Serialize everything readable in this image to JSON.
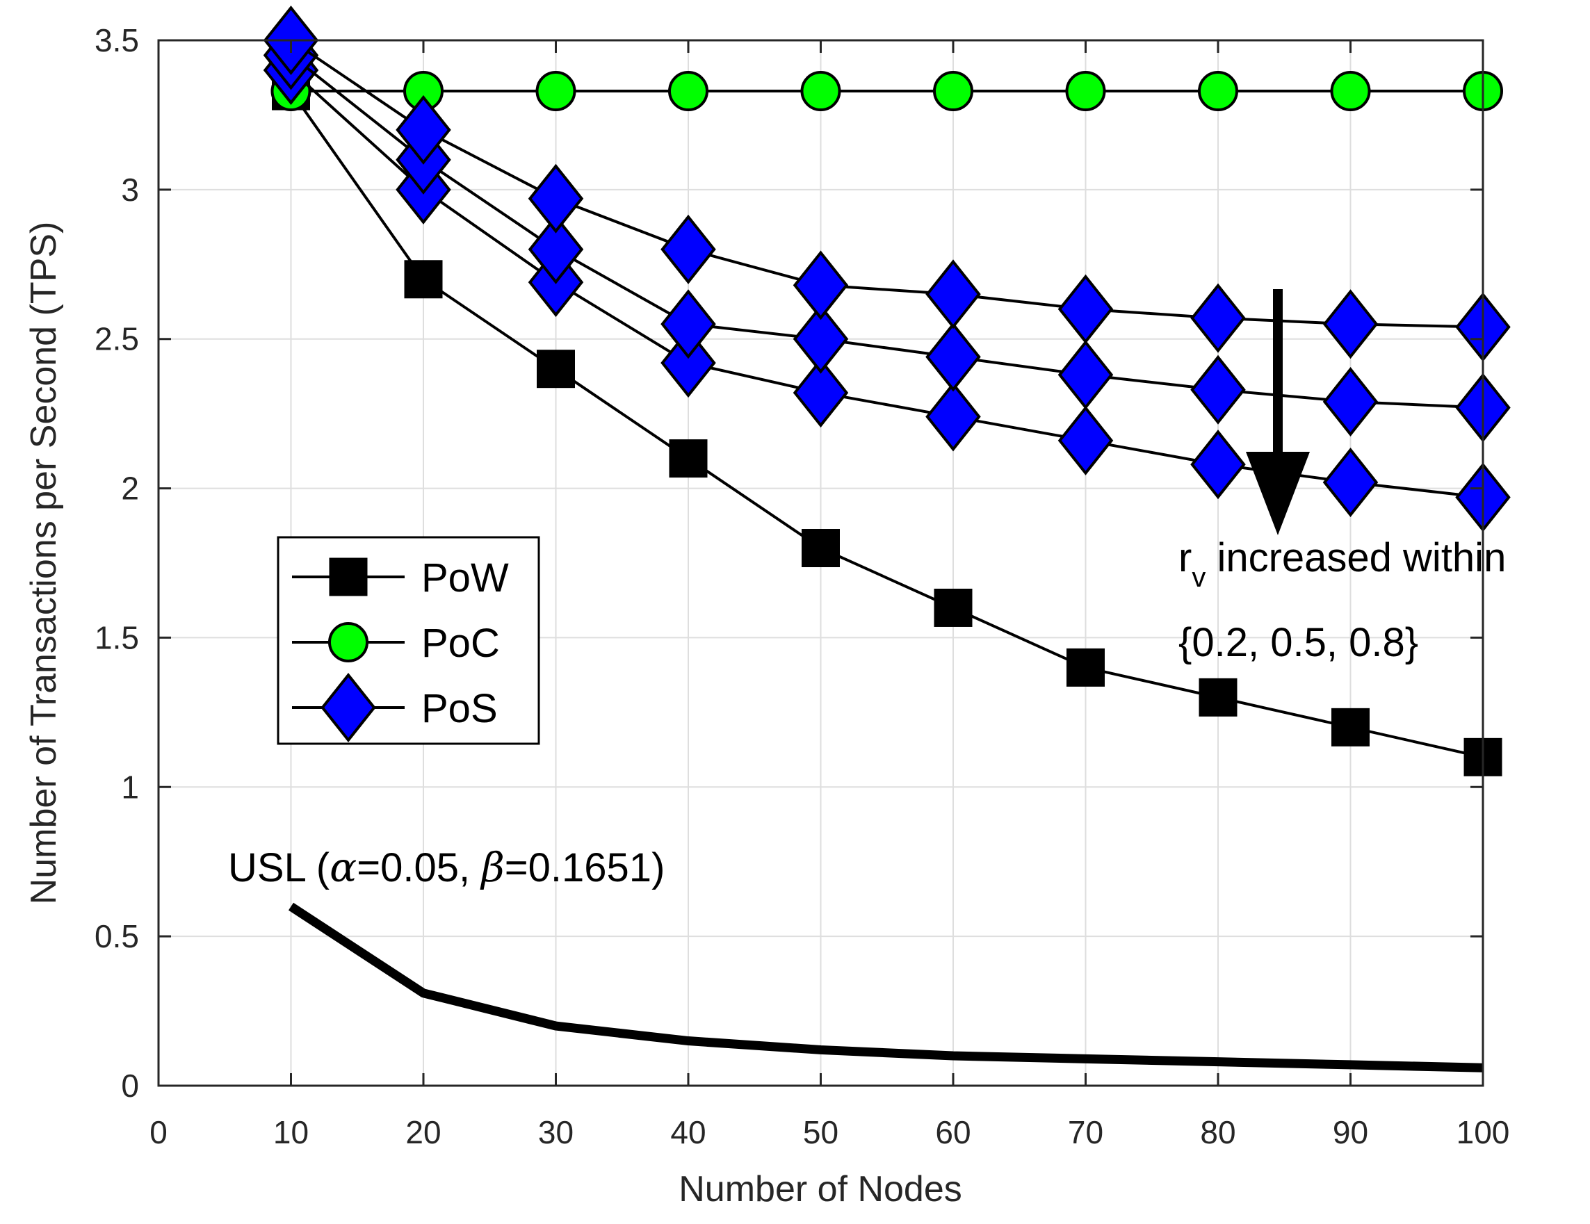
{
  "chart_data": {
    "type": "line",
    "title": "",
    "xlabel": "Number of Nodes",
    "ylabel": "Number of Transactions per Second (TPS)",
    "xlim": [
      0,
      100
    ],
    "ylim": [
      0,
      3.5
    ],
    "xticks": [
      0,
      10,
      20,
      30,
      40,
      50,
      60,
      70,
      80,
      90,
      100
    ],
    "yticks": [
      0,
      0.5,
      1,
      1.5,
      2,
      2.5,
      3,
      3.5
    ],
    "xtick_labels": [
      "0",
      "10",
      "20",
      "30",
      "40",
      "50",
      "60",
      "70",
      "80",
      "90",
      "100"
    ],
    "ytick_labels": [
      "0",
      "0.5",
      "1",
      "1.5",
      "2",
      "2.5",
      "3",
      "3.5"
    ],
    "grid": true,
    "legend_position": "middle-left",
    "legend": [
      {
        "label": "PoW",
        "marker": "square",
        "color": "#000000"
      },
      {
        "label": "PoC",
        "marker": "circle",
        "color": "#00ff00"
      },
      {
        "label": "PoS",
        "marker": "diamond",
        "color": "#0000ff"
      }
    ],
    "x": [
      10,
      20,
      30,
      40,
      50,
      60,
      70,
      80,
      90,
      100
    ],
    "series": [
      {
        "name": "PoW",
        "marker": "square",
        "color": "#000000",
        "values": [
          3.33,
          2.7,
          2.4,
          2.1,
          1.8,
          1.6,
          1.4,
          1.3,
          1.2,
          1.1
        ]
      },
      {
        "name": "PoC",
        "marker": "circle",
        "color": "#00ff00",
        "values": [
          3.33,
          3.33,
          3.33,
          3.33,
          3.33,
          3.33,
          3.33,
          3.33,
          3.33,
          3.33
        ]
      },
      {
        "name": "PoS (r_v=0.2)",
        "marker": "diamond",
        "color": "#0000ff",
        "values": [
          3.5,
          3.2,
          2.97,
          2.8,
          2.68,
          2.65,
          2.6,
          2.57,
          2.55,
          2.54
        ]
      },
      {
        "name": "PoS (r_v=0.5)",
        "marker": "diamond",
        "color": "#0000ff",
        "values": [
          3.45,
          3.1,
          2.8,
          2.55,
          2.5,
          2.44,
          2.38,
          2.33,
          2.29,
          2.27
        ]
      },
      {
        "name": "PoS (r_v=0.8)",
        "marker": "diamond",
        "color": "#0000ff",
        "values": [
          3.4,
          3.0,
          2.69,
          2.42,
          2.32,
          2.24,
          2.16,
          2.08,
          2.02,
          1.97
        ]
      },
      {
        "name": "USL",
        "marker": "none",
        "color": "#000000",
        "linewidth": "thick",
        "values": [
          0.6,
          0.31,
          0.2,
          0.15,
          0.12,
          0.1,
          0.09,
          0.08,
          0.07,
          0.06
        ]
      }
    ],
    "annotations": {
      "usl_label": {
        "prefix": "USL (",
        "alpha_symbol": "α",
        "alpha_value": "=0.05, ",
        "beta_symbol": "β",
        "beta_value": "=0.1651)"
      },
      "arrow_label": {
        "r": "r",
        "subscript": "v",
        "rest": " increased within",
        "line2": "{0.2, 0.5, 0.8}"
      }
    }
  }
}
